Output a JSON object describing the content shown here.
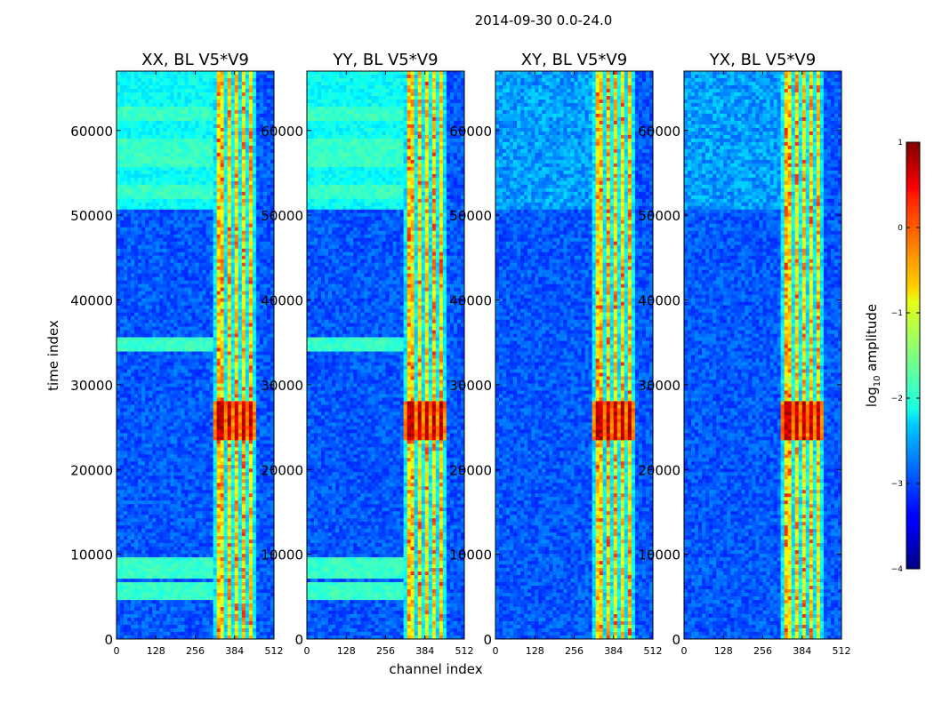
{
  "chart_data": {
    "type": "heatmap",
    "suptitle": "2014-09-30 0.0-24.0",
    "xlabel": "channel index",
    "ylabel": "time index",
    "xlim": [
      0,
      512
    ],
    "ylim": [
      0,
      67000
    ],
    "x_ticks": [
      0,
      128,
      256,
      384,
      512
    ],
    "y_ticks": [
      0,
      10000,
      20000,
      30000,
      40000,
      50000,
      60000
    ],
    "colorbar": {
      "label_prefix": "log",
      "label_sub": "10",
      "label_suffix": " amplitude",
      "range": [
        -4,
        1
      ],
      "ticks": [
        1,
        0,
        -1,
        -2,
        -3,
        -4
      ],
      "tick_labels": [
        "1",
        "0",
        "−1",
        "−2",
        "−3",
        "−4"
      ],
      "colormap": "jet"
    },
    "panels": [
      {
        "title": "XX, BL V5*V9",
        "cyan_bands": true
      },
      {
        "title": "YY, BL V5*V9",
        "cyan_bands": true
      },
      {
        "title": "XY, BL V5*V9",
        "cyan_bands": false
      },
      {
        "title": "YX, BL V5*V9",
        "cyan_bands": false
      }
    ],
    "signal_channel_ranges": [
      [
        325,
        345
      ],
      [
        358,
        370
      ],
      [
        380,
        392
      ],
      [
        403,
        415
      ],
      [
        428,
        440
      ]
    ],
    "bright_time_ranges": [
      [
        23500,
        27500
      ],
      [
        26500,
        28000
      ]
    ]
  }
}
